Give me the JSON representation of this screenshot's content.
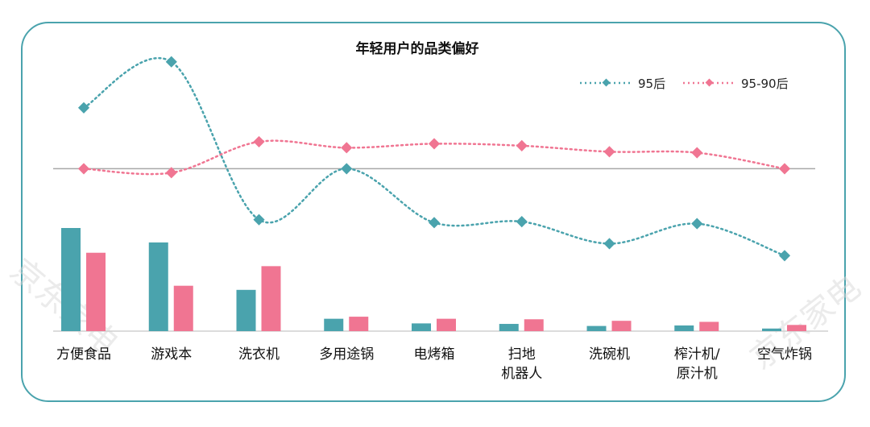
{
  "chart_data": {
    "type": "bar+line",
    "title": "年轻用户的品类偏好",
    "categories": [
      [
        "方便食品"
      ],
      [
        "游戏本"
      ],
      [
        "洗衣机"
      ],
      [
        "多用途锅"
      ],
      [
        "电烤箱"
      ],
      [
        "扫地",
        "机器人"
      ],
      [
        "洗碗机"
      ],
      [
        "榨汁机/",
        "原汁机"
      ],
      [
        "空气炸锅"
      ]
    ],
    "bar_series": [
      {
        "values": [
          100,
          86,
          40,
          12,
          7.5,
          7,
          5,
          5.5,
          2.5
        ],
        "color": "#4aa3ad"
      },
      {
        "values": [
          76,
          44,
          63,
          14,
          12,
          11.5,
          10,
          9,
          6
        ],
        "color": "#f07592"
      }
    ],
    "line_series": [
      {
        "name": "95后",
        "values": [
          176,
          222,
          64,
          115,
          61,
          62,
          40,
          60,
          28
        ],
        "color": "#4aa3ad"
      },
      {
        "name": "95-90后",
        "values": [
          115,
          111,
          142,
          136,
          140,
          138,
          132,
          131,
          115
        ],
        "color": "#f07592"
      }
    ],
    "reference_line": 115,
    "legend_position": "top-right",
    "grid": false
  },
  "watermark": "京东家电"
}
